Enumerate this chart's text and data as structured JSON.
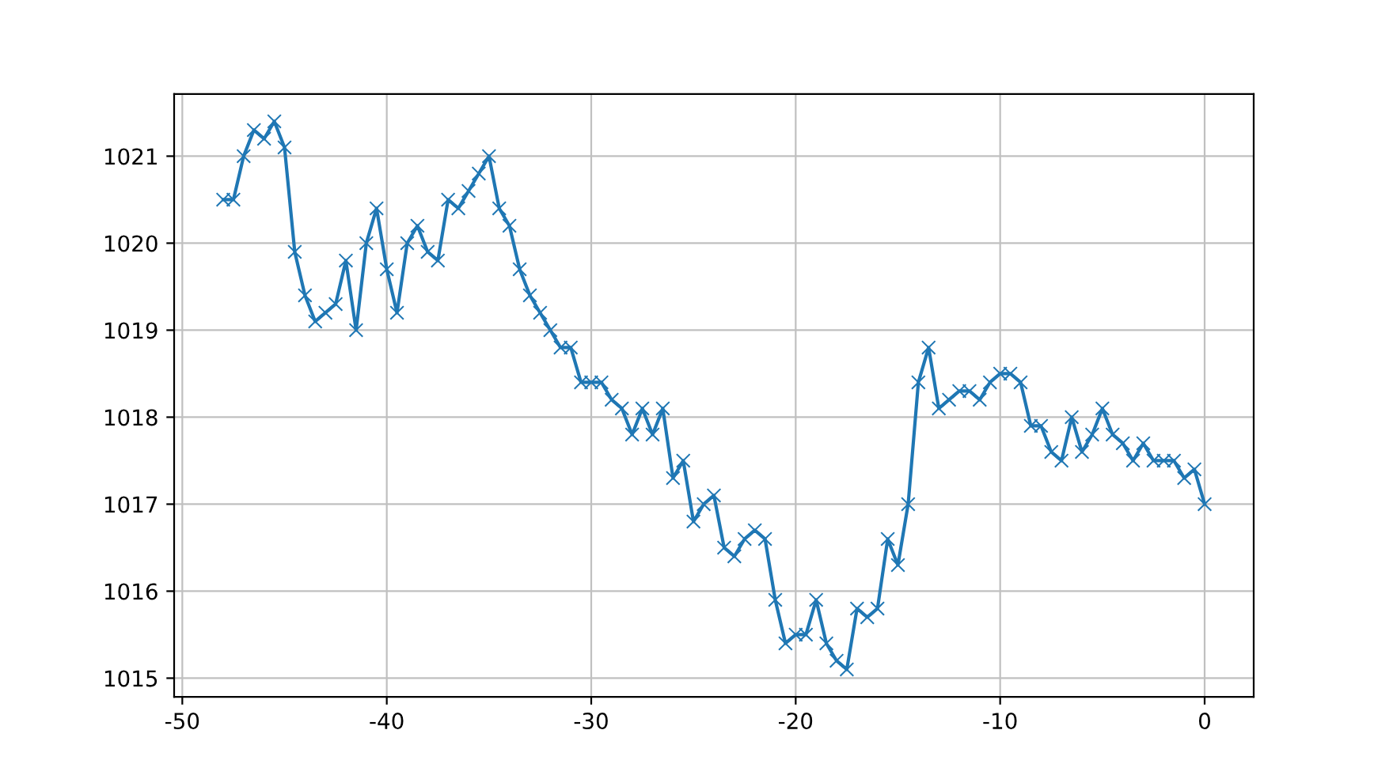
{
  "chart_data": {
    "type": "line",
    "marker": "cross",
    "line_style": "solid",
    "grid": true,
    "legend": false,
    "xlim": [
      -50.4,
      2.4
    ],
    "xticks": [
      -50,
      -40,
      -30,
      -20,
      -10,
      0
    ],
    "ylim": [
      1014.785,
      1021.715
    ],
    "yticks": [
      1015,
      1016,
      1017,
      1018,
      1019,
      1020,
      1021
    ],
    "x": [
      -48,
      -47.5,
      -47,
      -46.5,
      -46,
      -45.5,
      -45,
      -44.5,
      -44,
      -43.5,
      -43,
      -42.5,
      -42,
      -41.5,
      -41,
      -40.5,
      -40,
      -39.5,
      -39,
      -38.5,
      -38,
      -37.5,
      -37,
      -36.5,
      -36,
      -35.5,
      -35,
      -34.5,
      -34,
      -33.5,
      -33,
      -32.5,
      -32,
      -31.5,
      -31,
      -30.5,
      -30,
      -29.5,
      -29,
      -28.5,
      -28,
      -27.5,
      -27,
      -26.5,
      -26,
      -25.5,
      -25,
      -24.5,
      -24,
      -23.5,
      -23,
      -22.5,
      -22,
      -21.5,
      -21,
      -20.5,
      -20,
      -19.5,
      -19,
      -18.5,
      -18,
      -17.5,
      -17,
      -16.5,
      -16,
      -15.5,
      -15,
      -14.5,
      -14,
      -13.5,
      -13,
      -12.5,
      -12,
      -11.5,
      -11,
      -10.5,
      -10,
      -9.5,
      -9,
      -8.5,
      -8,
      -7.5,
      -7,
      -6.5,
      -6,
      -5.5,
      -5,
      -4.5,
      -4,
      -3.5,
      -3,
      -2.5,
      -2,
      -1.5,
      -1,
      -0.5,
      0
    ],
    "series": [
      {
        "color": "#1f77b4",
        "values": [
          1020.5,
          1020.5,
          1021.0,
          1021.3,
          1021.2,
          1021.4,
          1021.1,
          1019.9,
          1019.4,
          1019.1,
          1019.2,
          1019.3,
          1019.8,
          1019.0,
          1020.0,
          1020.4,
          1019.7,
          1019.2,
          1020.0,
          1020.2,
          1019.9,
          1019.8,
          1020.5,
          1020.4,
          1020.6,
          1020.8,
          1021.0,
          1020.4,
          1020.2,
          1019.7,
          1019.4,
          1019.2,
          1019.0,
          1018.8,
          1018.8,
          1018.4,
          1018.4,
          1018.4,
          1018.2,
          1018.1,
          1017.8,
          1018.1,
          1017.8,
          1018.1,
          1017.3,
          1017.5,
          1016.8,
          1017.0,
          1017.1,
          1016.5,
          1016.4,
          1016.6,
          1016.7,
          1016.6,
          1015.9,
          1015.4,
          1015.5,
          1015.5,
          1015.9,
          1015.4,
          1015.2,
          1015.1,
          1015.8,
          1015.7,
          1015.8,
          1016.6,
          1016.3,
          1017.0,
          1018.4,
          1018.8,
          1018.1,
          1018.2,
          1018.3,
          1018.3,
          1018.2,
          1018.4,
          1018.5,
          1018.5,
          1018.4,
          1017.9,
          1017.9,
          1017.6,
          1017.5,
          1018.0,
          1017.6,
          1017.8,
          1018.1,
          1017.8,
          1017.7,
          1017.5,
          1017.7,
          1017.5,
          1017.5,
          1017.5,
          1017.3,
          1017.4,
          1017.0
        ]
      }
    ]
  }
}
